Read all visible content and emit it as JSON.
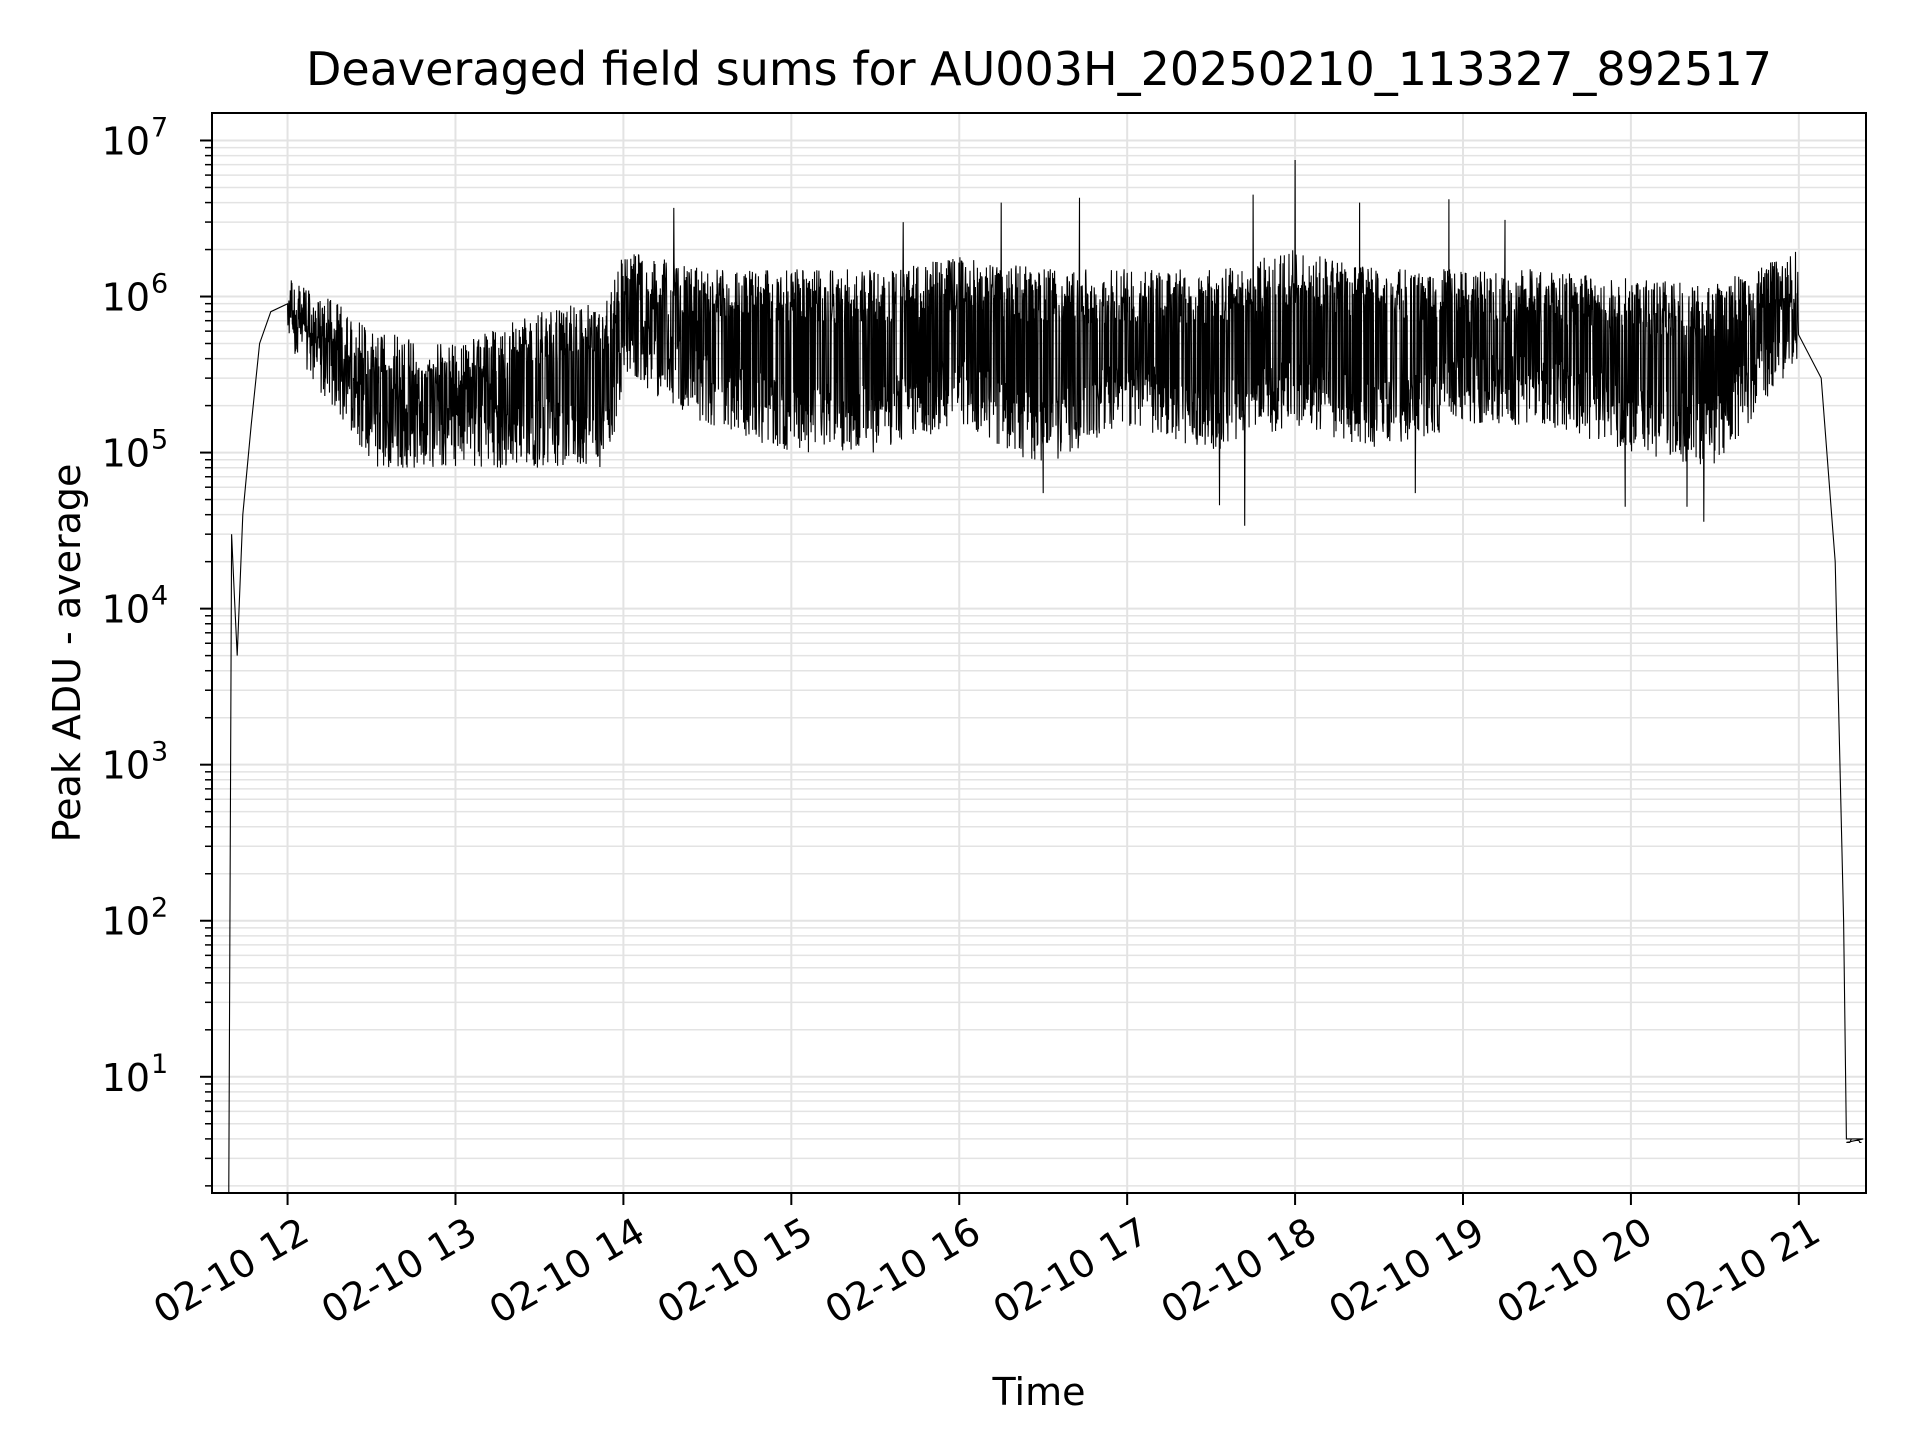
{
  "chart_data": {
    "type": "line",
    "title": "Deaveraged field sums for AU003H_20250210_113327_892517",
    "xlabel": "Time",
    "ylabel": "Peak ADU - average",
    "xscale": "time",
    "yscale": "log",
    "xlim": [
      "2025-02-10 11:33",
      "2025-02-10 21:24"
    ],
    "ylim": [
      1.8,
      15000000
    ],
    "grid": {
      "major": true,
      "minor_y": true
    },
    "xticks": [
      {
        "value": "2025-02-10 12:00",
        "label": "02-10 12"
      },
      {
        "value": "2025-02-10 13:00",
        "label": "02-10 13"
      },
      {
        "value": "2025-02-10 14:00",
        "label": "02-10 14"
      },
      {
        "value": "2025-02-10 15:00",
        "label": "02-10 15"
      },
      {
        "value": "2025-02-10 16:00",
        "label": "02-10 16"
      },
      {
        "value": "2025-02-10 17:00",
        "label": "02-10 17"
      },
      {
        "value": "2025-02-10 18:00",
        "label": "02-10 18"
      },
      {
        "value": "2025-02-10 19:00",
        "label": "02-10 19"
      },
      {
        "value": "2025-02-10 20:00",
        "label": "02-10 20"
      },
      {
        "value": "2025-02-10 21:00",
        "label": "02-10 21"
      }
    ],
    "yticks": [
      {
        "value": 10,
        "base": "10",
        "exp": "1"
      },
      {
        "value": 100,
        "base": "10",
        "exp": "2"
      },
      {
        "value": 1000,
        "base": "10",
        "exp": "3"
      },
      {
        "value": 10000,
        "base": "10",
        "exp": "4"
      },
      {
        "value": 100000,
        "base": "10",
        "exp": "5"
      },
      {
        "value": 1000000,
        "base": "10",
        "exp": "6"
      },
      {
        "value": 10000000,
        "base": "10",
        "exp": "7"
      }
    ],
    "series": [
      {
        "color": "#000000",
        "noise": "high-frequency fluctuation between the envelope bounds (approximate reconstruction)",
        "points": [
          {
            "x": "2025-02-10 11:39",
            "y": 2
          },
          {
            "x": "2025-02-10 11:40",
            "y": 30000
          },
          {
            "x": "2025-02-10 11:41",
            "y": 12000
          },
          {
            "x": "2025-02-10 11:42",
            "y": 5000
          },
          {
            "x": "2025-02-10 11:44",
            "y": 40000
          },
          {
            "x": "2025-02-10 11:47",
            "y": 150000
          },
          {
            "x": "2025-02-10 11:50",
            "y": 500000
          },
          {
            "x": "2025-02-10 11:54",
            "y": 800000
          },
          {
            "x": "2025-02-10 12:00",
            "y": 900000
          },
          {
            "x": "2025-02-10 21:00",
            "y": 1500000
          },
          {
            "x": "2025-02-10 21:08",
            "y": 300000
          },
          {
            "x": "2025-02-10 21:13",
            "y": 20000
          },
          {
            "x": "2025-02-10 21:16",
            "y": 100
          },
          {
            "x": "2025-02-10 21:17",
            "y": 4
          },
          {
            "x": "2025-02-10 21:23",
            "y": 4
          }
        ],
        "envelope": [
          {
            "x": "2025-02-10 12:00",
            "low": 500000,
            "high": 1300000
          },
          {
            "x": "2025-02-10 12:15",
            "low": 200000,
            "high": 1000000
          },
          {
            "x": "2025-02-10 12:30",
            "low": 80000,
            "high": 600000
          },
          {
            "x": "2025-02-10 13:00",
            "low": 80000,
            "high": 500000
          },
          {
            "x": "2025-02-10 13:30",
            "low": 80000,
            "high": 800000
          },
          {
            "x": "2025-02-10 13:55",
            "low": 80000,
            "high": 1000000
          },
          {
            "x": "2025-02-10 14:00",
            "low": 300000,
            "high": 2000000
          },
          {
            "x": "2025-02-10 14:30",
            "low": 150000,
            "high": 1500000
          },
          {
            "x": "2025-02-10 15:00",
            "low": 100000,
            "high": 1500000
          },
          {
            "x": "2025-02-10 15:30",
            "low": 100000,
            "high": 1500000
          },
          {
            "x": "2025-02-10 16:00",
            "low": 150000,
            "high": 1800000
          },
          {
            "x": "2025-02-10 16:30",
            "low": 80000,
            "high": 1500000
          },
          {
            "x": "2025-02-10 17:00",
            "low": 150000,
            "high": 1500000
          },
          {
            "x": "2025-02-10 17:30",
            "low": 100000,
            "high": 1500000
          },
          {
            "x": "2025-02-10 18:00",
            "low": 150000,
            "high": 2000000
          },
          {
            "x": "2025-02-10 18:30",
            "low": 100000,
            "high": 1500000
          },
          {
            "x": "2025-02-10 19:00",
            "low": 150000,
            "high": 1500000
          },
          {
            "x": "2025-02-10 19:30",
            "low": 150000,
            "high": 1500000
          },
          {
            "x": "2025-02-10 20:00",
            "low": 100000,
            "high": 1300000
          },
          {
            "x": "2025-02-10 20:30",
            "low": 80000,
            "high": 1200000
          },
          {
            "x": "2025-02-10 21:00",
            "low": 400000,
            "high": 2000000
          }
        ],
        "spikes": [
          {
            "x": "2025-02-10 14:18",
            "y": 3700000
          },
          {
            "x": "2025-02-10 15:40",
            "y": 3000000
          },
          {
            "x": "2025-02-10 16:15",
            "y": 4000000
          },
          {
            "x": "2025-02-10 16:43",
            "y": 4300000
          },
          {
            "x": "2025-02-10 17:45",
            "y": 4500000
          },
          {
            "x": "2025-02-10 18:00",
            "y": 7500000
          },
          {
            "x": "2025-02-10 18:23",
            "y": 4000000
          },
          {
            "x": "2025-02-10 18:55",
            "y": 4200000
          },
          {
            "x": "2025-02-10 19:15",
            "y": 3100000
          }
        ],
        "dips": [
          {
            "x": "2025-02-10 16:30",
            "y": 55000
          },
          {
            "x": "2025-02-10 17:33",
            "y": 46000
          },
          {
            "x": "2025-02-10 17:42",
            "y": 34000
          },
          {
            "x": "2025-02-10 18:43",
            "y": 55000
          },
          {
            "x": "2025-02-10 19:58",
            "y": 45000
          },
          {
            "x": "2025-02-10 20:20",
            "y": 45000
          },
          {
            "x": "2025-02-10 20:26",
            "y": 36000
          }
        ]
      }
    ]
  }
}
